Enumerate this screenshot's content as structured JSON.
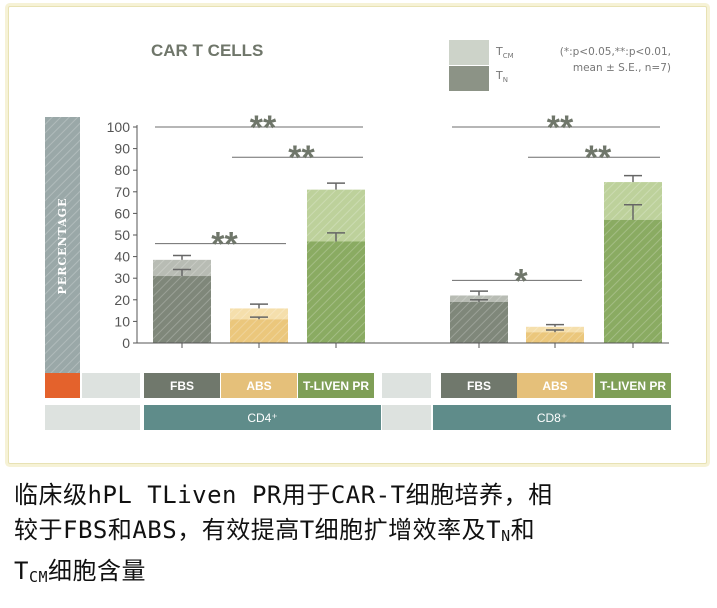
{
  "chart_data": {
    "type": "bar",
    "title": "CAR T CELLS",
    "ylabel": "PERCENTAGE",
    "ylim": [
      0,
      100
    ],
    "yticks": [
      0,
      10,
      20,
      30,
      40,
      50,
      60,
      70,
      80,
      90,
      100
    ],
    "stat_note_line1": "(*:p<0.05,**:p<0.01,",
    "stat_note_line2": "mean ± S.E., n=7)",
    "legend": [
      {
        "main": "T",
        "sub": "CM",
        "color": "#cdd3c9"
      },
      {
        "main": "T",
        "sub": "N",
        "color": "#8c9386"
      }
    ],
    "groups": [
      {
        "label": "CD4⁺",
        "categories": [
          "FBS",
          "ABS",
          "T-LIVEN PR"
        ]
      },
      {
        "label": "CD8⁺",
        "categories": [
          "FBS",
          "ABS",
          "T-LIVEN PR"
        ]
      }
    ],
    "series": [
      {
        "name": "TN",
        "values": [
          31,
          11,
          47,
          19,
          5,
          57
        ],
        "errors": [
          3,
          1,
          4,
          1,
          1,
          7
        ]
      },
      {
        "name": "TCM",
        "values": [
          7.5,
          5,
          24,
          3,
          2.5,
          17.5
        ],
        "errors": [
          2,
          2,
          3,
          2,
          1,
          3
        ]
      }
    ],
    "bar_colors": {
      "FBS": {
        "tn": "#7f877a",
        "tcm": "#b8bcb4"
      },
      "ABS": {
        "tn": "#ebc77c",
        "tcm": "#f5dfac"
      },
      "T-LIVEN PR": {
        "tn": "#8aab62",
        "tcm": "#bdd19b"
      }
    },
    "category_colors": {
      "FBS": "#70786c",
      "ABS": "#e5c07a",
      "T-LIVEN PR": "#7f9f57"
    },
    "group_color": "#5f8c8a",
    "significance": [
      {
        "label": "**",
        "from": 0,
        "to": 2,
        "level": 100
      },
      {
        "label": "**",
        "from": 1,
        "to": 2,
        "level": 86
      },
      {
        "label": "**",
        "from": 0,
        "to": 1,
        "level": 46
      },
      {
        "label": "**",
        "from": 3,
        "to": 5,
        "level": 100
      },
      {
        "label": "**",
        "from": 4,
        "to": 5,
        "level": 86
      },
      {
        "label": "*",
        "from": 3,
        "to": 4,
        "level": 29
      }
    ]
  },
  "caption": {
    "line1": "临床级hPL TLiven PR用于CAR-T细胞培养，相",
    "line2a": "较于FBS和ABS，有效提高T细胞扩增效率及T",
    "line2_sub": "N",
    "line2b": "和",
    "line3_main": "T",
    "line3_sub": "CM",
    "line3b": "细胞含量"
  }
}
